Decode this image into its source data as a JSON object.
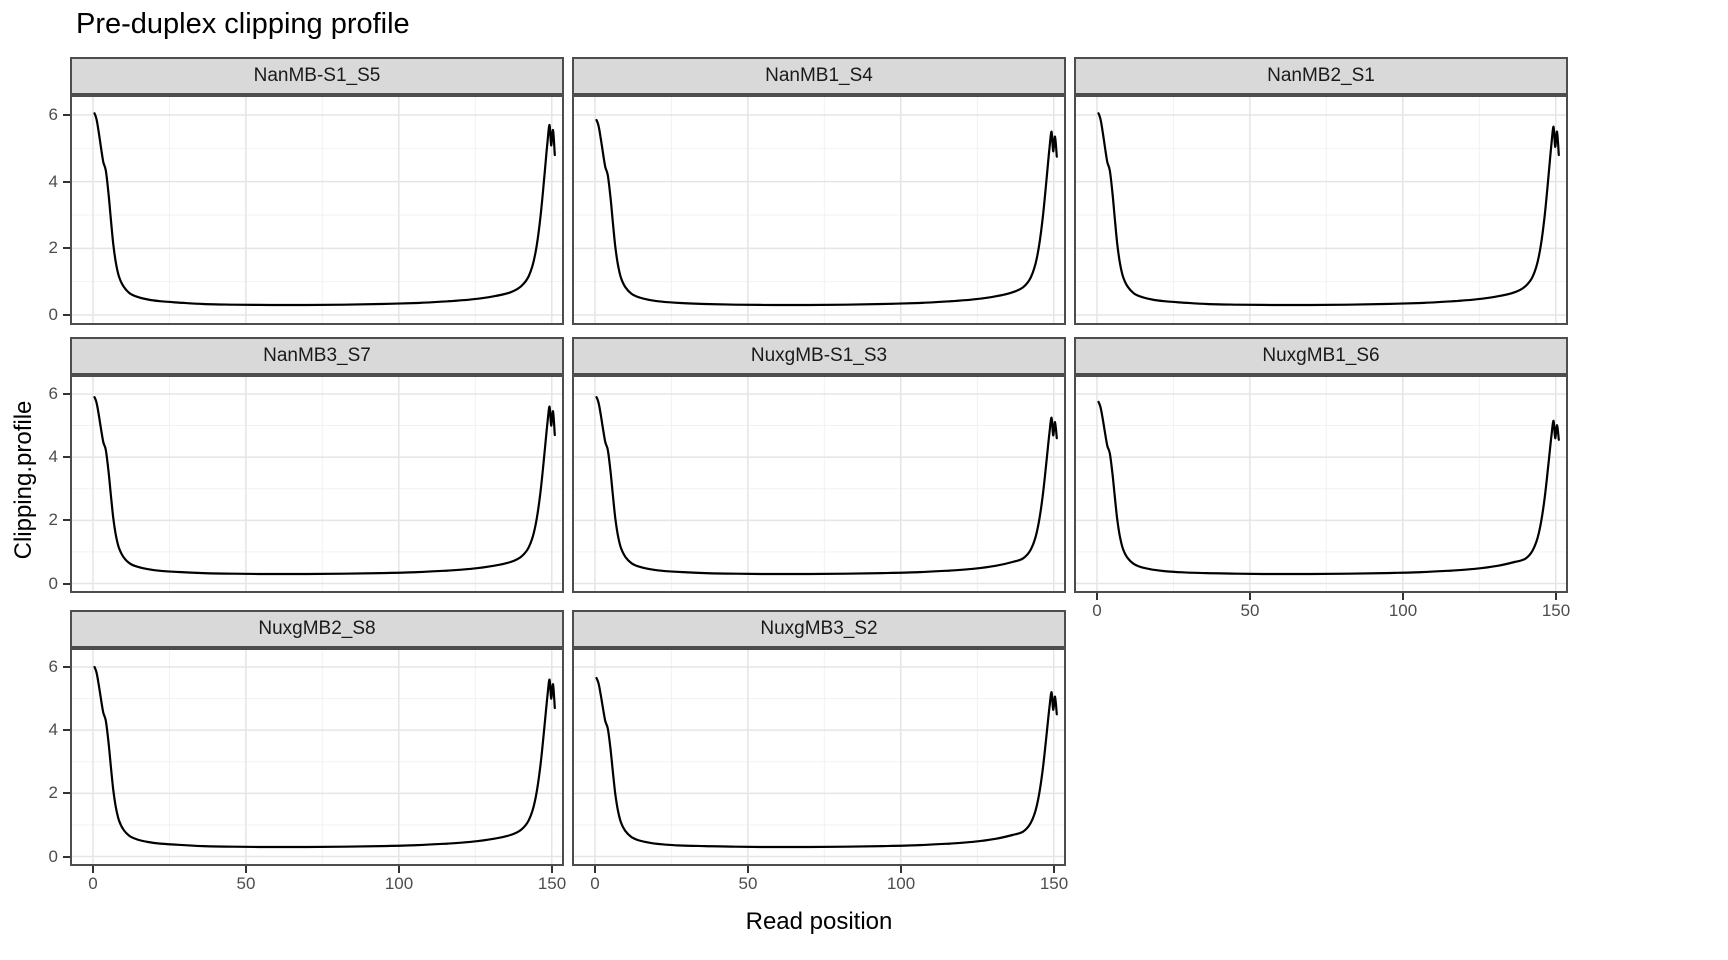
{
  "title": "Pre-duplex clipping profile",
  "chart_data": {
    "type": "line",
    "title": "Pre-duplex clipping profile",
    "xlabel": "Read position",
    "ylabel": "Clipping.profile",
    "x_ticks": [
      0,
      50,
      100,
      150
    ],
    "y_ticks": [
      0,
      2,
      4,
      6
    ],
    "x_minor": [
      25,
      75,
      125
    ],
    "y_minor": [
      1,
      3,
      5
    ],
    "xlim": [
      -7.5,
      154
    ],
    "ylim": [
      -0.3,
      6.6
    ],
    "grid": true,
    "legend": "none",
    "facet_layout": {
      "ncol": 3,
      "nrow": 3
    },
    "facets": [
      {
        "label": "NanMB-S1_S5",
        "start": 6.05,
        "peak": 5.7,
        "end": 4.8
      },
      {
        "label": "NanMB1_S4",
        "start": 5.85,
        "peak": 5.5,
        "end": 4.75
      },
      {
        "label": "NanMB2_S1",
        "start": 6.05,
        "peak": 5.65,
        "end": 4.8
      },
      {
        "label": "NanMB3_S7",
        "start": 5.9,
        "peak": 5.6,
        "end": 4.7
      },
      {
        "label": "NuxgMB-S1_S3",
        "start": 5.9,
        "peak": 5.25,
        "end": 4.6
      },
      {
        "label": "NuxgMB1_S6",
        "start": 5.75,
        "peak": 5.15,
        "end": 4.55
      },
      {
        "label": "NuxgMB2_S8",
        "start": 6.0,
        "peak": 5.6,
        "end": 4.7
      },
      {
        "label": "NuxgMB3_S2",
        "start": 5.65,
        "peak": 5.2,
        "end": 4.5
      }
    ],
    "curve_template": {
      "note": "bathtub clipping profile shared by all facets; per-facet start/peak/end scale the left edge, right spike and final point",
      "start": 6.0,
      "peak": 5.6,
      "end": 4.75,
      "x": [
        0.5,
        1.1,
        1.8,
        2.6,
        3.4,
        4.2,
        5,
        5.8,
        6.6,
        7.5,
        8.5,
        10,
        12,
        14.5,
        18,
        22,
        28,
        36,
        46,
        58,
        70,
        82,
        94,
        106,
        116,
        124,
        131,
        136.5,
        140,
        142.5,
        144.5,
        146.2,
        147.6,
        148.6,
        149.3,
        149.8,
        150.4,
        151
      ],
      "y": [
        6,
        5.85,
        5.5,
        5,
        4.55,
        4.3,
        3.7,
        2.9,
        2.15,
        1.55,
        1.15,
        0.85,
        0.65,
        0.54,
        0.46,
        0.41,
        0.37,
        0.33,
        0.31,
        0.3,
        0.3,
        0.31,
        0.33,
        0.36,
        0.41,
        0.47,
        0.56,
        0.68,
        0.85,
        1.15,
        1.75,
        2.8,
        4.1,
        5.1,
        5.6,
        5,
        5.45,
        4.75
      ]
    }
  },
  "style": {
    "curve_color": "#000000",
    "strip_fill": "#d9d9d9",
    "panel_border": "#4d4d4d",
    "grid_major": "#e5e5e5",
    "grid_minor": "#f2f2f2",
    "tick_color": "#333333",
    "tick_label_color": "#4d4d4d",
    "title_color": "#000000",
    "background": "#ffffff"
  }
}
